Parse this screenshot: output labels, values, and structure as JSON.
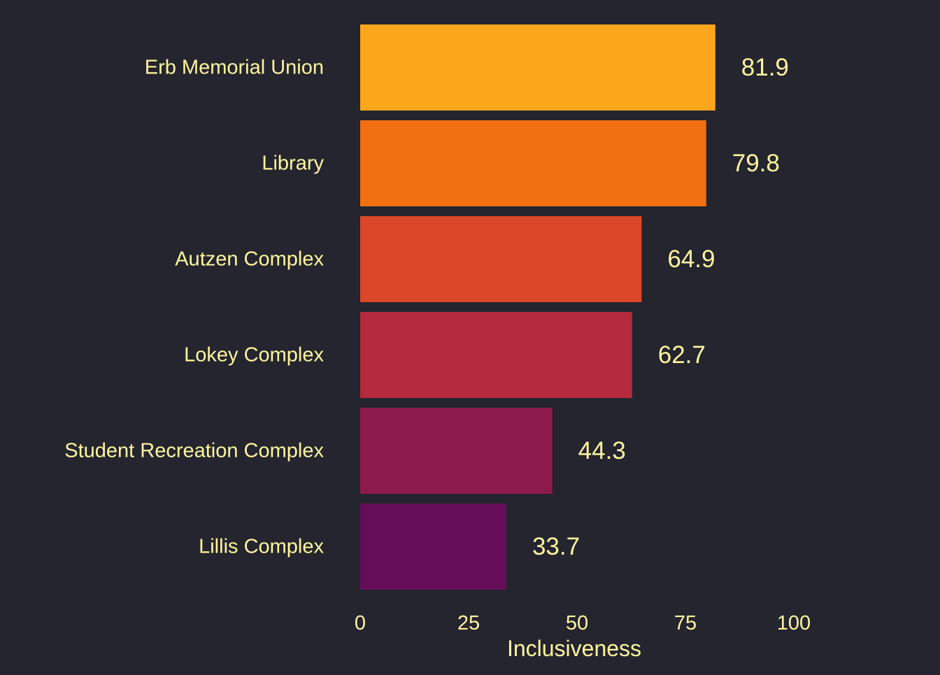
{
  "chart_data": {
    "type": "bar",
    "orientation": "horizontal",
    "categories": [
      "Erb Memorial Union",
      "Library",
      "Autzen Complex",
      "Lokey Complex",
      "Student Recreation Complex",
      "Lillis Complex"
    ],
    "values": [
      81.9,
      79.8,
      64.9,
      62.7,
      44.3,
      33.7
    ],
    "value_labels": [
      "81.9",
      "79.8",
      "64.9",
      "62.7",
      "44.3",
      "33.7"
    ],
    "bar_colors": [
      "#fca71b",
      "#f07012",
      "#db4728",
      "#b62a3d",
      "#8d1a4c",
      "#650d59"
    ],
    "xlabel": "Inclusiveness",
    "ylabel": "",
    "xlim": [
      0,
      100
    ],
    "xticks": [
      "0",
      "25",
      "50",
      "75",
      "100"
    ],
    "grid": false,
    "legend": "none"
  },
  "colors": {
    "background": "#24252e",
    "text": "#fff5a0"
  }
}
